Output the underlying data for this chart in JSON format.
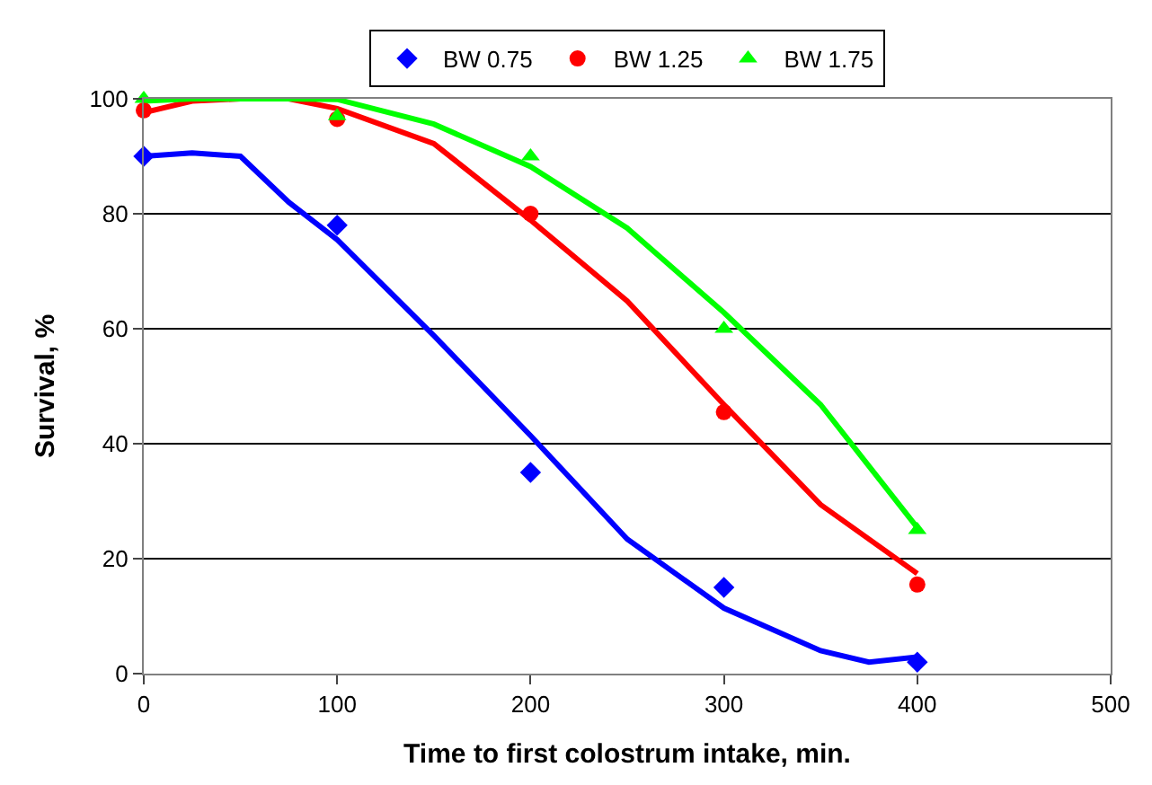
{
  "chart_data": {
    "type": "scatter",
    "xlabel": "Time to first colostrum intake, min.",
    "ylabel": "Survival, %",
    "xlim": [
      0,
      500
    ],
    "xticks": [
      0,
      100,
      200,
      300,
      400,
      500
    ],
    "ylim": [
      0,
      100
    ],
    "yticks": [
      0,
      20,
      40,
      60,
      80,
      100
    ],
    "grid": "y",
    "legend": "top",
    "series": [
      {
        "name": "BW 0.75",
        "color": "#0000ff",
        "marker": "diamond",
        "x": [
          0,
          100,
          200,
          300,
          400
        ],
        "values": [
          90,
          78,
          35,
          15,
          2
        ]
      },
      {
        "name": "BW 1.25",
        "color": "#ff0000",
        "marker": "circle",
        "x": [
          0,
          100,
          200,
          300,
          400
        ],
        "values": [
          98,
          96.5,
          80,
          45.5,
          15.5
        ]
      },
      {
        "name": "BW 1.75",
        "color": "#00ff00",
        "marker": "triangle",
        "x": [
          0,
          100,
          200,
          300,
          400
        ],
        "values": [
          100,
          97,
          90,
          60,
          25
        ]
      },
      {
        "type": "line",
        "color": "#0000ff",
        "x": [
          0,
          25,
          50,
          75,
          100,
          150,
          200,
          250,
          300,
          350,
          375,
          400
        ],
        "values": [
          90,
          90.6,
          90,
          82,
          75.5,
          58.8,
          41.4,
          23.4,
          11.4,
          4,
          2,
          2.9
        ]
      },
      {
        "type": "line",
        "color": "#ff0000",
        "x": [
          0,
          25,
          50,
          75,
          100,
          150,
          200,
          250,
          300,
          350,
          400
        ],
        "values": [
          97.6,
          99.6,
          100,
          100,
          98.3,
          92.2,
          78.9,
          64.8,
          46.8,
          29.4,
          17.4
        ]
      },
      {
        "type": "line",
        "color": "#00ff00",
        "x": [
          0,
          25,
          50,
          75,
          100,
          150,
          200,
          250,
          300,
          350,
          400
        ],
        "values": [
          99.6,
          100,
          100,
          100,
          99.9,
          95.6,
          88.2,
          77.5,
          62.8,
          46.8,
          25.4
        ]
      }
    ]
  }
}
